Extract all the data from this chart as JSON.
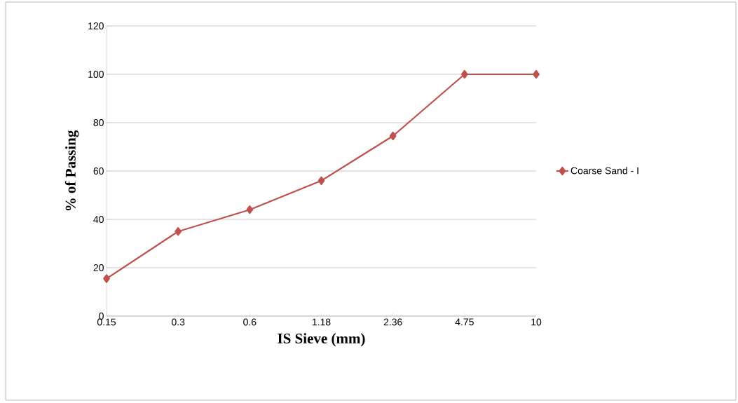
{
  "chart_data": {
    "type": "line",
    "xlabel": "IS Sieve (mm)",
    "ylabel": "% of Passing",
    "categories": [
      "0.15",
      "0.3",
      "0.6",
      "1.18",
      "2.36",
      "4.75",
      "10"
    ],
    "series": [
      {
        "name": "Coarse Sand - I",
        "color": "#c0504d",
        "values": [
          15.5,
          35,
          44,
          56,
          74.5,
          100,
          100
        ]
      }
    ],
    "ylim": [
      0,
      120
    ],
    "yticks": [
      0,
      20,
      40,
      60,
      80,
      100,
      120
    ],
    "grid": "y",
    "legend": "right",
    "marker": "diamond",
    "line_style": "solid"
  }
}
